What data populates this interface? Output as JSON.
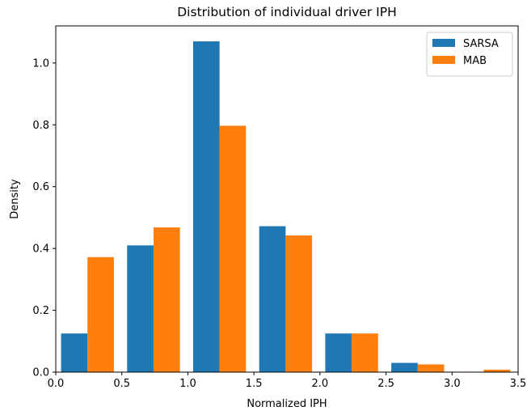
{
  "chart_data": {
    "type": "bar",
    "title": "Distribution of individual driver IPH",
    "xlabel": "Normalized IPH",
    "ylabel": "Density",
    "xlim": [
      0.0,
      3.5
    ],
    "ylim": [
      0.0,
      1.12
    ],
    "xticks": [
      "0.0",
      "0.5",
      "1.0",
      "1.5",
      "2.0",
      "2.5",
      "3.0",
      "3.5"
    ],
    "yticks": [
      "0.0",
      "0.2",
      "0.4",
      "0.6",
      "0.8",
      "1.0"
    ],
    "bin_edges": [
      0.04,
      0.54,
      1.04,
      1.54,
      2.04,
      2.54,
      3.04,
      3.54
    ],
    "grid": false,
    "legend_position": "top-right",
    "series": [
      {
        "name": "SARSA",
        "color": "#1f77b4",
        "values": [
          0.125,
          0.41,
          1.07,
          0.472,
          0.125,
          0.03,
          0.0
        ]
      },
      {
        "name": "MAB",
        "color": "#ff7f0e",
        "values": [
          0.372,
          0.468,
          0.797,
          0.442,
          0.125,
          0.025,
          0.008
        ]
      }
    ]
  }
}
